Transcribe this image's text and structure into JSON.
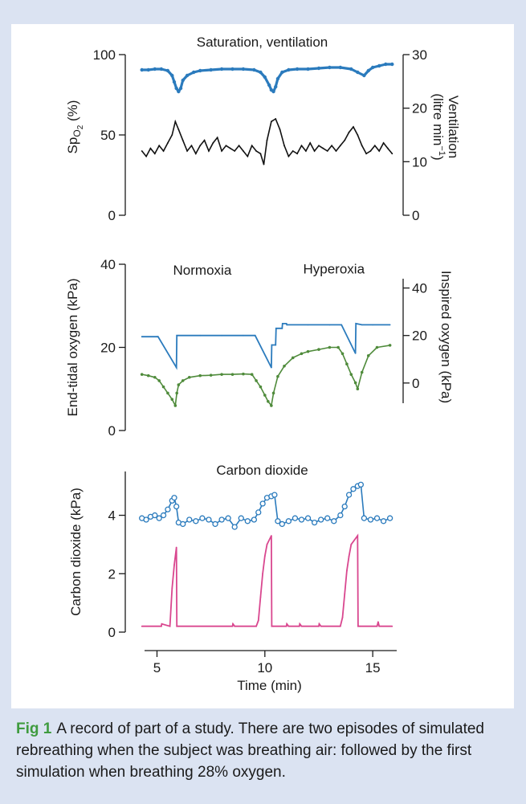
{
  "caption": {
    "label": "Fig 1",
    "text": "A record of part of a study. There are two episodes of simulated rebreathing when the subject was breathing air: followed by the first simulation when breathing 28% oxygen."
  },
  "colors": {
    "blue": "#2b7bbd",
    "black": "#111111",
    "green": "#4f8b3b",
    "pink": "#d9478f",
    "axis": "#1a1a1a"
  },
  "chart_data": [
    {
      "type": "line",
      "title": "Saturation, ventilation",
      "xlim": [
        4.2,
        16.0
      ],
      "ylabel": "Sp",
      "ylabel_sub": "O",
      "ylabel_subsub": "2",
      "ylabel_unit": " (%)",
      "ylim": [
        0,
        100
      ],
      "yticks": [
        0,
        50,
        100
      ],
      "y2label_line1": "Ventilation",
      "y2label_line2": "(litre min",
      "y2label_sup": "−1",
      "y2label_close": ")",
      "y2lim": [
        0,
        30
      ],
      "y2ticks": [
        0,
        10,
        20,
        30
      ],
      "series": [
        {
          "axis": "left",
          "color": "blue",
          "style": "markers",
          "x": [
            4.3,
            4.6,
            4.9,
            5.2,
            5.5,
            5.7,
            5.8,
            5.9,
            6.0,
            6.1,
            6.2,
            6.4,
            6.7,
            7.0,
            7.5,
            8.0,
            8.5,
            9.0,
            9.5,
            9.8,
            10.0,
            10.2,
            10.3,
            10.4,
            10.5,
            10.6,
            10.8,
            11.1,
            11.5,
            12.0,
            12.5,
            13.0,
            13.5,
            14.0,
            14.3,
            14.6,
            14.8,
            15.0,
            15.3,
            15.6,
            15.9
          ],
          "values": [
            90.5,
            90.5,
            91,
            91,
            90,
            87,
            83,
            79,
            77,
            79,
            84,
            87,
            89,
            90,
            90.5,
            91,
            91,
            91,
            90.5,
            89,
            86,
            81,
            78,
            77,
            80,
            85,
            89,
            90.5,
            91,
            91,
            91.5,
            92,
            92,
            91,
            89,
            87,
            90,
            92,
            93,
            94,
            94
          ]
        },
        {
          "axis": "right",
          "color": "black",
          "style": "line",
          "x": [
            4.3,
            4.5,
            4.7,
            4.9,
            5.1,
            5.3,
            5.5,
            5.7,
            5.85,
            6.0,
            6.2,
            6.4,
            6.6,
            6.8,
            7.0,
            7.2,
            7.4,
            7.6,
            7.8,
            8.0,
            8.2,
            8.4,
            8.6,
            8.8,
            9.0,
            9.2,
            9.4,
            9.6,
            9.8,
            9.95,
            10.1,
            10.3,
            10.5,
            10.7,
            10.9,
            11.1,
            11.3,
            11.5,
            11.7,
            11.9,
            12.1,
            12.3,
            12.5,
            12.7,
            12.9,
            13.1,
            13.3,
            13.5,
            13.7,
            13.9,
            14.1,
            14.3,
            14.5,
            14.7,
            14.9,
            15.1,
            15.3,
            15.5,
            15.7,
            15.9
          ],
          "values": [
            12,
            11,
            12.5,
            11.5,
            13,
            12,
            13.5,
            15,
            17.5,
            16,
            14,
            12,
            13,
            11.5,
            13,
            14,
            12,
            13.5,
            14.5,
            12,
            13,
            12.5,
            12,
            13,
            12,
            11,
            13,
            12,
            11.5,
            9.5,
            14,
            17.5,
            18,
            16,
            13,
            11,
            12,
            11.5,
            13,
            12,
            13.5,
            12,
            13,
            12.5,
            12,
            13,
            12,
            13,
            14,
            15.5,
            16.5,
            15,
            13,
            11.5,
            12,
            13,
            12,
            13.5,
            12.5,
            11.5
          ]
        }
      ]
    },
    {
      "type": "line",
      "xlim": [
        4.2,
        16.0
      ],
      "ylabel": "End-tidal oxygen (kPa)",
      "ylim": [
        0,
        40
      ],
      "yticks": [
        0,
        20,
        40
      ],
      "y2label": "Inspired oxygen (kPa)",
      "y2lim": [
        -20,
        50
      ],
      "y2ticks": [
        0,
        20,
        40
      ],
      "annotations": [
        {
          "text": "Normoxia",
          "x": 7.1,
          "y": 37.5
        },
        {
          "text": "Hyperoxia",
          "x": 13.2,
          "y": 37.8
        }
      ],
      "series": [
        {
          "axis": "right",
          "color": "blue",
          "style": "line",
          "x": [
            4.3,
            5.0,
            5.05,
            5.9,
            5.92,
            6.0,
            7.0,
            8.0,
            9.0,
            9.5,
            9.55,
            10.3,
            10.32,
            10.5,
            10.52,
            10.8,
            10.82,
            11.0,
            11.02,
            12.0,
            13.0,
            13.5,
            13.55,
            14.2,
            14.22,
            14.5,
            15.0,
            15.8
          ],
          "values": [
            19.5,
            19.5,
            19.5,
            6.5,
            20,
            20,
            20,
            20,
            20,
            20,
            20,
            6.5,
            16,
            16,
            23,
            23,
            25,
            25,
            24.5,
            24.5,
            24.5,
            24.5,
            24.5,
            12.5,
            25,
            24.5,
            24.5,
            24.5
          ]
        },
        {
          "axis": "left",
          "color": "green",
          "style": "markers",
          "x": [
            4.3,
            4.6,
            4.9,
            5.1,
            5.3,
            5.5,
            5.7,
            5.85,
            5.92,
            6.0,
            6.2,
            6.5,
            7.0,
            7.5,
            8.0,
            8.5,
            9.0,
            9.4,
            9.6,
            9.8,
            10.0,
            10.15,
            10.3,
            10.4,
            10.6,
            10.9,
            11.3,
            11.7,
            12.0,
            12.5,
            13.0,
            13.4,
            13.6,
            13.8,
            14.0,
            14.2,
            14.3,
            14.5,
            14.8,
            15.2,
            15.8
          ],
          "values": [
            13.5,
            13.2,
            12.8,
            12,
            10.5,
            9,
            7.5,
            6,
            9,
            11,
            12,
            12.8,
            13.2,
            13.3,
            13.5,
            13.5,
            13.6,
            13.5,
            12,
            10.5,
            8.5,
            7,
            6,
            9,
            13,
            15.5,
            17.5,
            18.5,
            19,
            19.5,
            20,
            20,
            18.5,
            16,
            13.5,
            11.5,
            10,
            14,
            18,
            20,
            20.5
          ]
        }
      ]
    },
    {
      "type": "line",
      "title": "Carbon dioxide",
      "xlim": [
        4.2,
        16.0
      ],
      "xlabel": "Time (min)",
      "xticks": [
        5,
        10,
        15
      ],
      "ylabel": "Carbon dioxide (kPa)",
      "ylim": [
        0,
        5.5
      ],
      "yticks": [
        0,
        2,
        4
      ],
      "series": [
        {
          "axis": "left",
          "color": "blue",
          "style": "markers",
          "x": [
            4.3,
            4.5,
            4.7,
            4.9,
            5.1,
            5.3,
            5.5,
            5.7,
            5.8,
            5.9,
            6.0,
            6.2,
            6.5,
            6.8,
            7.1,
            7.4,
            7.7,
            8.0,
            8.3,
            8.6,
            8.9,
            9.2,
            9.5,
            9.7,
            9.9,
            10.1,
            10.3,
            10.45,
            10.6,
            10.8,
            11.1,
            11.4,
            11.7,
            12.0,
            12.3,
            12.6,
            12.9,
            13.2,
            13.5,
            13.7,
            13.9,
            14.1,
            14.3,
            14.45,
            14.6,
            14.9,
            15.2,
            15.5,
            15.8
          ],
          "values": [
            3.9,
            3.85,
            3.95,
            4.0,
            3.9,
            4.0,
            4.2,
            4.5,
            4.6,
            4.3,
            3.75,
            3.7,
            3.85,
            3.8,
            3.9,
            3.85,
            3.7,
            3.85,
            3.9,
            3.6,
            3.9,
            3.8,
            3.85,
            4.1,
            4.4,
            4.6,
            4.65,
            4.7,
            3.8,
            3.7,
            3.8,
            3.9,
            3.85,
            3.9,
            3.75,
            3.85,
            3.9,
            3.8,
            4.0,
            4.3,
            4.7,
            4.9,
            5.0,
            5.05,
            3.9,
            3.85,
            3.9,
            3.8,
            3.9
          ]
        },
        {
          "axis": "left",
          "color": "pink",
          "style": "line",
          "x": [
            4.3,
            5.2,
            5.22,
            5.6,
            5.7,
            5.8,
            5.9,
            5.92,
            6.0,
            8.5,
            8.52,
            8.6,
            9.6,
            9.7,
            9.8,
            9.9,
            10.0,
            10.1,
            10.3,
            10.32,
            10.4,
            11.0,
            11.02,
            11.1,
            11.6,
            11.62,
            11.7,
            12.5,
            12.52,
            12.6,
            13.5,
            13.6,
            13.7,
            13.8,
            13.9,
            14.0,
            14.3,
            14.32,
            14.4,
            15.2,
            15.25,
            15.3,
            15.9
          ],
          "values": [
            0.2,
            0.2,
            0.28,
            0.2,
            1.5,
            2.3,
            2.9,
            0.2,
            0.2,
            0.2,
            0.28,
            0.2,
            0.2,
            0.4,
            1.2,
            2.0,
            2.6,
            3.0,
            3.3,
            0.2,
            0.2,
            0.2,
            0.28,
            0.2,
            0.2,
            0.28,
            0.2,
            0.2,
            0.28,
            0.2,
            0.2,
            0.5,
            1.3,
            2.1,
            2.6,
            3.0,
            3.3,
            0.2,
            0.2,
            0.2,
            0.35,
            0.2,
            0.2
          ]
        }
      ]
    }
  ]
}
